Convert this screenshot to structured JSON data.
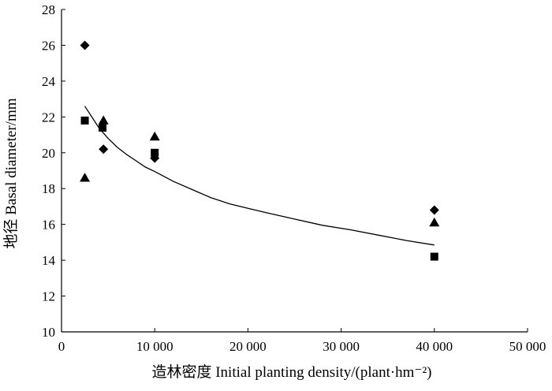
{
  "chart_data": {
    "type": "scatter",
    "title": "",
    "xlabel": "造林密度 Initial planting density/(plant·hm⁻²)",
    "ylabel": "地径 Basal diameter/mm",
    "xlim": [
      0,
      50000
    ],
    "ylim": [
      10,
      28
    ],
    "x_ticks": [
      0,
      10000,
      20000,
      30000,
      40000,
      50000
    ],
    "x_tick_labels": [
      "0",
      "10 000",
      "20 000",
      "30 000",
      "40 000",
      "50 000"
    ],
    "y_ticks": [
      10,
      12,
      14,
      16,
      18,
      20,
      22,
      24,
      26,
      28
    ],
    "y_tick_labels": [
      "10",
      "12",
      "14",
      "16",
      "18",
      "20",
      "22",
      "24",
      "26",
      "28"
    ],
    "grid": false,
    "series": [
      {
        "name": "diamond",
        "marker": "diamond",
        "points": [
          [
            2500,
            26.0
          ],
          [
            4500,
            20.2
          ],
          [
            10000,
            19.7
          ],
          [
            40000,
            16.8
          ]
        ]
      },
      {
        "name": "square",
        "marker": "square",
        "points": [
          [
            2500,
            21.8
          ],
          [
            4400,
            21.4
          ],
          [
            10000,
            20.0
          ],
          [
            40000,
            14.2
          ]
        ]
      },
      {
        "name": "triangle",
        "marker": "triangle",
        "points": [
          [
            2500,
            18.6
          ],
          [
            4500,
            21.8
          ],
          [
            10000,
            20.9
          ],
          [
            40000,
            16.1
          ]
        ]
      }
    ],
    "fit_line": {
      "name": "fitted-curve",
      "x": [
        2500,
        3000,
        3500,
        4000,
        5000,
        6000,
        7000,
        8000,
        9000,
        10000,
        12000,
        14000,
        16000,
        18000,
        20000,
        22000,
        25000,
        28000,
        31000,
        34000,
        37000,
        40000
      ],
      "y": [
        22.6,
        22.2,
        21.8,
        21.4,
        20.8,
        20.3,
        19.9,
        19.55,
        19.2,
        18.95,
        18.4,
        17.95,
        17.5,
        17.15,
        16.9,
        16.65,
        16.3,
        15.95,
        15.7,
        15.4,
        15.1,
        14.85
      ]
    }
  }
}
